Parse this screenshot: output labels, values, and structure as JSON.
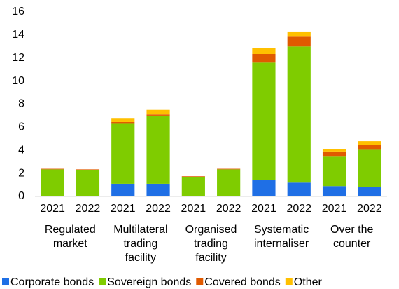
{
  "chart_data": {
    "type": "stacked_bar",
    "categories": [
      "2021",
      "2022",
      "2021",
      "2022",
      "2021",
      "2022",
      "2021",
      "2022",
      "2021",
      "2022"
    ],
    "groups": [
      {
        "lines": [
          "Regulated",
          "market"
        ]
      },
      {
        "lines": [
          "Multilateral",
          "trading",
          "facility"
        ]
      },
      {
        "lines": [
          "Organised",
          "trading",
          "facility"
        ]
      },
      {
        "lines": [
          "Systematic",
          "internaliser"
        ]
      },
      {
        "lines": [
          "Over the",
          "counter"
        ]
      }
    ],
    "series": [
      {
        "name": "Corporate bonds",
        "color": "#1f6fe5",
        "values": [
          0,
          0,
          1.1,
          1.1,
          0,
          0,
          1.4,
          1.2,
          0.9,
          0.8
        ]
      },
      {
        "name": "Sovereign bonds",
        "color": "#7fcc00",
        "values": [
          2.35,
          2.3,
          5.2,
          5.9,
          1.7,
          2.35,
          10.2,
          11.8,
          2.55,
          3.25
        ]
      },
      {
        "name": "Covered bonds",
        "color": "#e05a00",
        "values": [
          0.05,
          0.05,
          0.15,
          0.1,
          0.05,
          0.05,
          0.75,
          0.85,
          0.45,
          0.45
        ]
      },
      {
        "name": "Other",
        "color": "#ffc000",
        "values": [
          0,
          0,
          0.35,
          0.4,
          0,
          0,
          0.5,
          0.45,
          0.2,
          0.3
        ]
      }
    ],
    "ylim": [
      0,
      16
    ],
    "yticks": [
      0,
      2,
      4,
      6,
      8,
      10,
      12,
      14,
      16
    ],
    "legend": "bottom"
  }
}
